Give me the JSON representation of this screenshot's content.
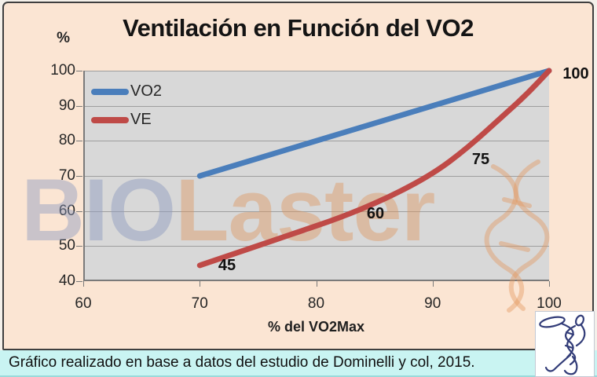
{
  "title": "Ventilación en Función del VO2",
  "watermark": {
    "part1": "BIO",
    "part2": "Laster"
  },
  "caption": "Gráfico realizado en base a datos del estudio de Dominelli y col, 2015.",
  "legend": {
    "items": [
      {
        "label": "VO2",
        "color": "#4a7ebb"
      },
      {
        "label": "VE",
        "color": "#bf4a47"
      }
    ]
  },
  "y_axis": {
    "unit_label": "%",
    "ticks": [
      100,
      90,
      80,
      70,
      60,
      50,
      40
    ]
  },
  "x_axis": {
    "label": "% del VO2Max",
    "ticks": [
      60,
      70,
      80,
      90,
      100
    ]
  },
  "colors": {
    "slide_background": "#fbe5d3",
    "plot_background": "#d8d8d8",
    "gridline": "#9e9e9e",
    "axis": "#7a7a7a",
    "vo2_line": "#4a7ebb",
    "ve_line": "#bf4a47",
    "caption_background": "#c9f4f2",
    "watermark_bio": "#8b9abf",
    "watermark_laster": "#de9054",
    "logo_ink": "#323c78"
  },
  "chart_data": {
    "type": "line",
    "title": "Ventilación en Función del VO2",
    "xlabel": "% del VO2Max",
    "ylabel": "%",
    "xlim": [
      60,
      100
    ],
    "ylim": [
      40,
      100
    ],
    "grid": true,
    "legend_position": "top-left-inside",
    "x_ticks": [
      60,
      70,
      80,
      90,
      100
    ],
    "y_ticks": [
      40,
      50,
      60,
      70,
      80,
      90,
      100
    ],
    "series": [
      {
        "name": "VO2",
        "color": "#4a7ebb",
        "x": [
          70,
          100
        ],
        "y": [
          70,
          100
        ]
      },
      {
        "name": "VE",
        "color": "#bf4a47",
        "x": [
          70,
          74,
          78,
          82,
          86,
          90,
          93,
          96,
          98,
          100
        ],
        "y": [
          44.5,
          49,
          53.5,
          58,
          63.5,
          70.5,
          78,
          87,
          93,
          100
        ]
      }
    ],
    "annotations": [
      {
        "text": "45",
        "x": 70,
        "y": 45
      },
      {
        "text": "60",
        "x": 84.5,
        "y": 60
      },
      {
        "text": "75",
        "x": 92.5,
        "y": 75
      },
      {
        "text": "100",
        "x": 100,
        "y": 100
      }
    ]
  }
}
